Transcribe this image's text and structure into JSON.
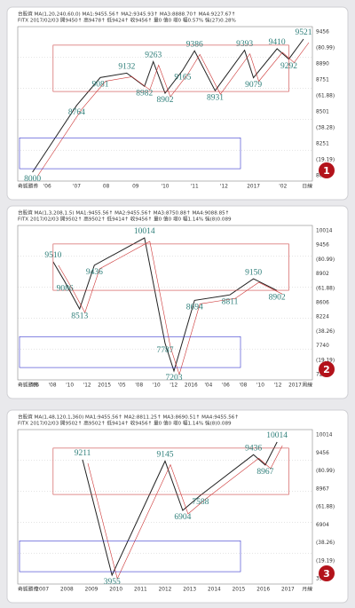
{
  "panels": [
    {
      "header": [
        "台股資 MA(1,20,240,60,0) MA1:9455.56↑ MA2:9345.93↑ MA3:8888.70↑ MA4:9227.67↑",
        "FITX 2017/02/03 開9450↑ 高9478↑ 低9424↑ 收9456↑ 量0 值0 增0 幅0.57% 強(27)0.28%"
      ],
      "annotations": [
        8000,
        8764,
        9081,
        9132,
        8982,
        9263,
        8902,
        9165,
        9386,
        8931,
        9393,
        9079,
        9410,
        9292,
        9521
      ],
      "x_labels": [
        "奇狐勝券",
        "'06",
        "'07",
        "08",
        "09",
        "'10",
        "'11",
        "'12",
        "2017",
        "'02",
        "日線"
      ],
      "y_labels": [
        "9456",
        "(80.99)",
        "8890",
        "8751",
        "(61.88)",
        "8501",
        "(38.28)",
        "8251",
        "(19.19)",
        "8001"
      ],
      "badge": "1"
    },
    {
      "header": [
        "台股資 MA(1,3,208,1.5) MA1:9455.56↑ MA2:9455.56↑ MA3:8750.88↑ MA4:9088.85↑",
        "FITX 2017/02/03 開9502↑ 高9502↑ 低9414↑ 收9456↑ 量0 值0 增0 幅1.14% 強(8)0.089"
      ],
      "annotations": [
        9510,
        9086,
        8513,
        9436,
        10014,
        7787,
        7203,
        8694,
        8811,
        9150,
        8902
      ],
      "x_labels": [
        "奇狐勝券",
        "'06",
        "'08",
        "'10",
        "'12",
        "2015",
        "'05",
        "'08",
        "'10",
        "'12",
        "2016",
        "'04",
        "'06",
        "'08",
        "'10",
        "'12",
        "2017",
        "周線"
      ],
      "y_labels": [
        "10014",
        "9456",
        "(80.99)",
        "8902",
        "(61.88)",
        "8606",
        "8224",
        "(38.26)",
        "7740",
        "(19.19)",
        "7203"
      ],
      "badge": "2"
    },
    {
      "header": [
        "台股資 MA(1,48,120,1,360) MA1:9455.56↑ MA2:8811.25↑ MA3:8690.51↑ MA4:9455.56↑",
        "FITX 2017/02/03 開9502↑ 高9502↑ 低9414↑ 收9456↑ 量0 值0 增0 幅1.14% 強(8)0.089"
      ],
      "annotations": [
        9211,
        3955,
        9145,
        6904,
        7588,
        9436,
        8967,
        10014
      ],
      "x_labels": [
        "奇狐勝券",
        "2007",
        "2008",
        "2009",
        "2010",
        "2011",
        "2012",
        "2013",
        "2014",
        "2015",
        "2016",
        "2017",
        "月線"
      ],
      "y_labels": [
        "10014",
        "9456",
        "(80.99)",
        "8967",
        "(61.88)",
        "6904",
        "(38.26)",
        "(19.19)",
        "3955"
      ],
      "badge": "3"
    }
  ]
}
